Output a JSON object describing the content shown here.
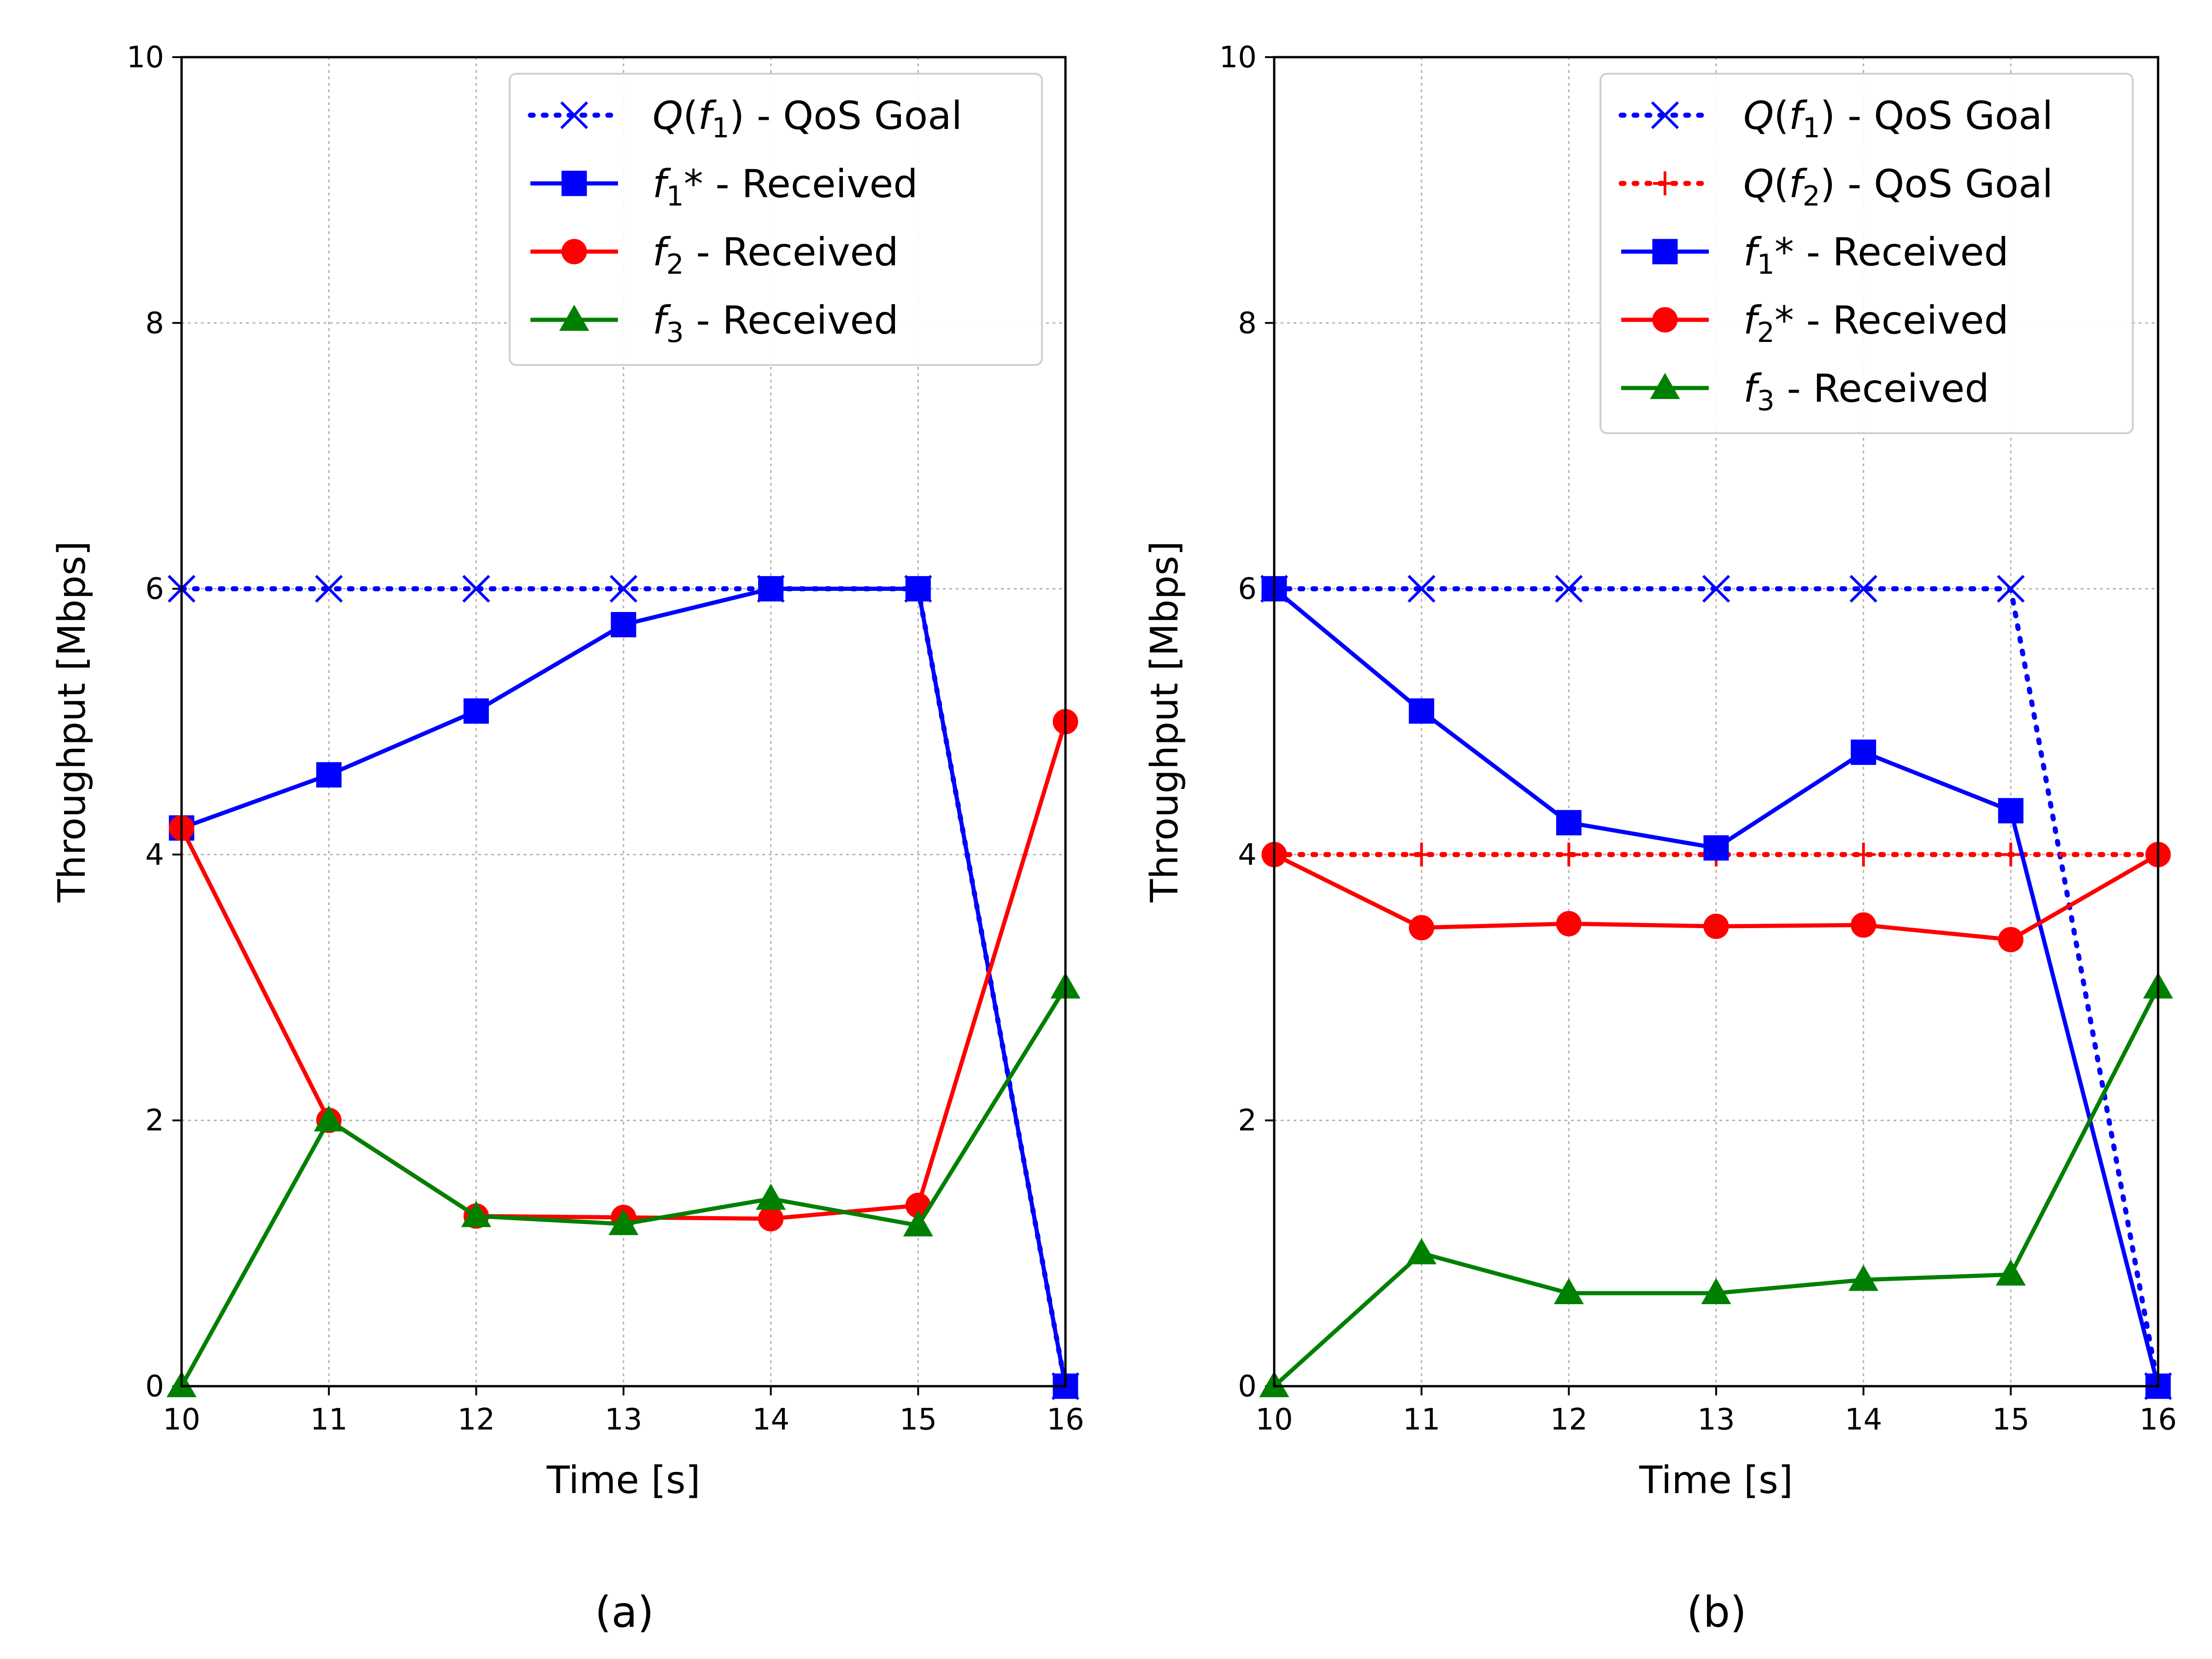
{
  "figure": {
    "captions": [
      "(a)",
      "(b)"
    ]
  },
  "chart_data": [
    {
      "type": "line",
      "panel": "(a)",
      "xlabel": "Time [s]",
      "ylabel": "Throughput [Mbps]",
      "xlim": [
        10,
        16
      ],
      "ylim": [
        0,
        10
      ],
      "xticks": [
        10,
        11,
        12,
        13,
        14,
        15,
        16
      ],
      "yticks": [
        0,
        2,
        4,
        6,
        8,
        10
      ],
      "grid": true,
      "legend_position": "top-right",
      "series": [
        {
          "id": "q_f1",
          "name": "Q(f₁) - QoS Goal",
          "label": {
            "fn": "Q",
            "sym": "f",
            "sub": "1",
            "suffix": " - QoS Goal"
          },
          "color": "#0000ff",
          "linestyle": "dotted",
          "marker": "x",
          "x": [
            10,
            11,
            12,
            13,
            14,
            15,
            16
          ],
          "y": [
            6,
            6,
            6,
            6,
            6,
            6,
            0
          ]
        },
        {
          "id": "f1",
          "name": "f₁* - Received",
          "label": {
            "fn": "",
            "sym": "f",
            "sub": "1",
            "suffix": "* - Received"
          },
          "color": "#0000ff",
          "linestyle": "solid",
          "marker": "square",
          "x": [
            10,
            11,
            12,
            13,
            14,
            15,
            16
          ],
          "y": [
            4.2,
            4.6,
            5.08,
            5.73,
            6.0,
            6.0,
            0
          ]
        },
        {
          "id": "f2",
          "name": "f₂ - Received",
          "label": {
            "fn": "",
            "sym": "f",
            "sub": "2",
            "suffix": " - Received"
          },
          "color": "#ff0000",
          "linestyle": "solid",
          "marker": "circle",
          "x": [
            10,
            11,
            12,
            13,
            14,
            15,
            16
          ],
          "y": [
            4.2,
            2.0,
            1.28,
            1.27,
            1.26,
            1.36,
            5.0
          ]
        },
        {
          "id": "f3",
          "name": "f₃ - Received",
          "label": {
            "fn": "",
            "sym": "f",
            "sub": "3",
            "suffix": " - Received"
          },
          "color": "#008000",
          "linestyle": "solid",
          "marker": "triangle",
          "x": [
            10,
            11,
            12,
            13,
            14,
            15,
            16
          ],
          "y": [
            0,
            2.0,
            1.28,
            1.22,
            1.41,
            1.21,
            3.0
          ]
        }
      ]
    },
    {
      "type": "line",
      "panel": "(b)",
      "xlabel": "Time [s]",
      "ylabel": "Throughput [Mbps]",
      "xlim": [
        10,
        16
      ],
      "ylim": [
        0,
        10
      ],
      "xticks": [
        10,
        11,
        12,
        13,
        14,
        15,
        16
      ],
      "yticks": [
        0,
        2,
        4,
        6,
        8,
        10
      ],
      "grid": true,
      "legend_position": "top-right",
      "series": [
        {
          "id": "q_f1",
          "name": "Q(f₁) - QoS Goal",
          "label": {
            "fn": "Q",
            "sym": "f",
            "sub": "1",
            "suffix": " - QoS Goal"
          },
          "color": "#0000ff",
          "linestyle": "dotted",
          "marker": "x",
          "x": [
            10,
            11,
            12,
            13,
            14,
            15,
            16
          ],
          "y": [
            6,
            6,
            6,
            6,
            6,
            6,
            0
          ]
        },
        {
          "id": "q_f2",
          "name": "Q(f₂) - QoS Goal",
          "label": {
            "fn": "Q",
            "sym": "f",
            "sub": "2",
            "suffix": " - QoS Goal"
          },
          "color": "#ff0000",
          "linestyle": "dotted",
          "marker": "plus",
          "x": [
            10,
            11,
            12,
            13,
            14,
            15,
            16
          ],
          "y": [
            4,
            4,
            4,
            4,
            4,
            4,
            4
          ]
        },
        {
          "id": "f1",
          "name": "f₁* - Received",
          "label": {
            "fn": "",
            "sym": "f",
            "sub": "1",
            "suffix": "* - Received"
          },
          "color": "#0000ff",
          "linestyle": "solid",
          "marker": "square",
          "x": [
            10,
            11,
            12,
            13,
            14,
            15,
            16
          ],
          "y": [
            6.0,
            5.08,
            4.24,
            4.05,
            4.77,
            4.33,
            0
          ]
        },
        {
          "id": "f2",
          "name": "f₂* - Received",
          "label": {
            "fn": "",
            "sym": "f",
            "sub": "2",
            "suffix": "* - Received"
          },
          "color": "#ff0000",
          "linestyle": "solid",
          "marker": "circle",
          "x": [
            10,
            11,
            12,
            13,
            14,
            15,
            16
          ],
          "y": [
            4.0,
            3.45,
            3.48,
            3.46,
            3.47,
            3.36,
            4.0
          ]
        },
        {
          "id": "f3",
          "name": "f₃ - Received",
          "label": {
            "fn": "",
            "sym": "f",
            "sub": "3",
            "suffix": " - Received"
          },
          "color": "#008000",
          "linestyle": "solid",
          "marker": "triangle",
          "x": [
            10,
            11,
            12,
            13,
            14,
            15,
            16
          ],
          "y": [
            0,
            1.0,
            0.7,
            0.7,
            0.8,
            0.84,
            3.0
          ]
        }
      ]
    }
  ]
}
